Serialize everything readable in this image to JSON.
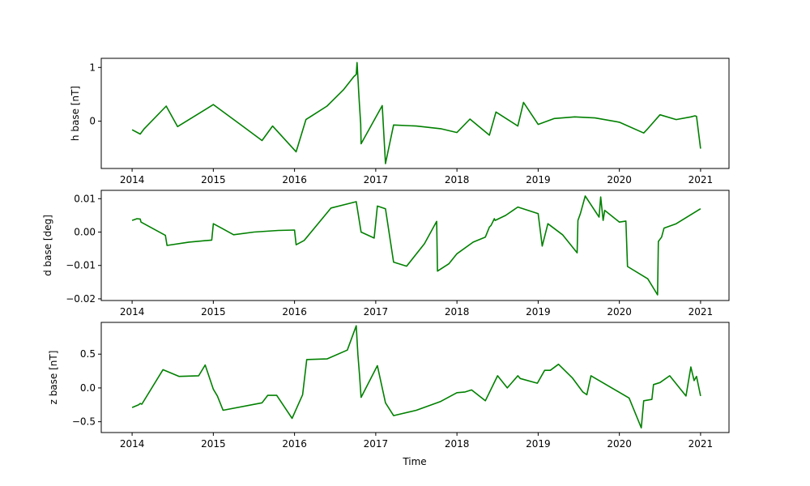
{
  "chart_data": [
    {
      "type": "line",
      "ylabel": "h base [nT]",
      "xlabel": "",
      "xlim": [
        2013.62,
        2021.35
      ],
      "ylim": [
        -0.88,
        1.17
      ],
      "xticks": [
        2014,
        2015,
        2016,
        2017,
        2018,
        2019,
        2020,
        2021
      ],
      "xtick_labels": [
        "2014",
        "2015",
        "2016",
        "2017",
        "2018",
        "2019",
        "2020",
        "2021"
      ],
      "yticks": [
        0,
        1
      ],
      "ytick_labels": [
        "0",
        "1"
      ],
      "grid": false,
      "series": [
        {
          "color": "#008000",
          "x": [
            2014.0,
            2014.1,
            2014.15,
            2014.42,
            2014.56,
            2015.0,
            2015.35,
            2015.6,
            2015.73,
            2016.02,
            2016.14,
            2016.4,
            2016.6,
            2016.73,
            2016.76,
            2016.77,
            2016.785,
            2016.79,
            2016.8,
            2016.815,
            2016.82,
            2017.08,
            2017.12,
            2017.22,
            2017.5,
            2017.8,
            2018.0,
            2018.16,
            2018.4,
            2018.48,
            2018.75,
            2018.82,
            2019.0,
            2019.2,
            2019.45,
            2019.7,
            2020.0,
            2020.3,
            2020.35,
            2020.5,
            2020.7,
            2020.88,
            2020.93,
            2020.95,
            2021.0
          ],
          "y": [
            -0.16,
            -0.24,
            -0.14,
            0.28,
            -0.1,
            0.31,
            -0.08,
            -0.36,
            -0.09,
            -0.57,
            0.03,
            0.28,
            0.58,
            0.83,
            0.87,
            1.09,
            0.7,
            0.55,
            0.3,
            -0.05,
            -0.42,
            0.29,
            -0.79,
            -0.07,
            -0.09,
            -0.14,
            -0.21,
            0.04,
            -0.26,
            0.17,
            -0.09,
            0.35,
            -0.06,
            0.05,
            0.08,
            0.06,
            -0.02,
            -0.22,
            -0.14,
            0.12,
            0.03,
            0.08,
            0.1,
            0.09,
            -0.51
          ]
        }
      ]
    },
    {
      "type": "line",
      "ylabel": "d base [deg]",
      "xlabel": "",
      "xlim": [
        2013.62,
        2021.35
      ],
      "ylim": [
        -0.0205,
        0.0125
      ],
      "xticks": [
        2014,
        2015,
        2016,
        2017,
        2018,
        2019,
        2020,
        2021
      ],
      "xtick_labels": [
        "2014",
        "2015",
        "2016",
        "2017",
        "2018",
        "2019",
        "2020",
        "2021"
      ],
      "yticks": [
        -0.02,
        -0.01,
        0.0,
        0.01
      ],
      "ytick_labels": [
        "−0.02",
        "−0.01",
        "0.00",
        "0.01"
      ],
      "grid": false,
      "series": [
        {
          "color": "#008000",
          "x": [
            2014.0,
            2014.06,
            2014.1,
            2014.11,
            2014.41,
            2014.43,
            2014.7,
            2014.98,
            2015.0,
            2015.1,
            2015.25,
            2015.5,
            2015.8,
            2016.0,
            2016.02,
            2016.12,
            2016.45,
            2016.76,
            2016.82,
            2016.98,
            2017.02,
            2017.12,
            2017.22,
            2017.38,
            2017.6,
            2017.75,
            2017.76,
            2017.9,
            2018.0,
            2018.2,
            2018.35,
            2018.4,
            2018.42,
            2018.46,
            2018.47,
            2018.6,
            2018.75,
            2019.0,
            2019.05,
            2019.12,
            2019.3,
            2019.48,
            2019.49,
            2019.52,
            2019.58,
            2019.75,
            2019.77,
            2019.8,
            2019.82,
            2020.0,
            2020.08,
            2020.1,
            2020.35,
            2020.47,
            2020.48,
            2020.52,
            2020.55,
            2020.7,
            2021.0
          ],
          "y": [
            0.0035,
            0.004,
            0.0039,
            0.003,
            -0.001,
            -0.004,
            -0.003,
            -0.0024,
            0.0025,
            0.0012,
            -0.0008,
            0.0,
            0.0005,
            0.0006,
            -0.0038,
            -0.0025,
            0.0072,
            0.0091,
            0.0,
            -0.0018,
            0.0078,
            0.007,
            -0.009,
            -0.0102,
            -0.0035,
            0.0032,
            -0.0117,
            -0.0095,
            -0.0065,
            -0.003,
            -0.0015,
            0.0015,
            0.002,
            0.004,
            0.0035,
            0.005,
            0.0075,
            0.0055,
            -0.0042,
            0.0025,
            -0.0008,
            -0.0062,
            0.0035,
            0.0055,
            0.0108,
            0.0045,
            0.0105,
            0.0035,
            0.0065,
            0.003,
            0.0033,
            -0.0103,
            -0.014,
            -0.0188,
            -0.0028,
            -0.0015,
            0.0012,
            0.0025,
            0.007
          ]
        }
      ]
    },
    {
      "type": "line",
      "ylabel": "z base [nT]",
      "xlabel": "Time",
      "xlim": [
        2013.62,
        2021.35
      ],
      "ylim": [
        -0.66,
        0.97
      ],
      "xticks": [
        2014,
        2015,
        2016,
        2017,
        2018,
        2019,
        2020,
        2021
      ],
      "xtick_labels": [
        "2014",
        "2015",
        "2016",
        "2017",
        "2018",
        "2019",
        "2020",
        "2021"
      ],
      "yticks": [
        -0.5,
        0.0,
        0.5
      ],
      "ytick_labels": [
        "−0.5",
        "0.0",
        "0.5"
      ],
      "grid": false,
      "series": [
        {
          "color": "#008000",
          "x": [
            2014.0,
            2014.08,
            2014.1,
            2014.12,
            2014.38,
            2014.58,
            2014.82,
            2014.9,
            2015.0,
            2015.05,
            2015.12,
            2015.6,
            2015.67,
            2015.78,
            2015.97,
            2016.1,
            2016.15,
            2016.4,
            2016.65,
            2016.76,
            2016.78,
            2016.8,
            2016.82,
            2017.02,
            2017.12,
            2017.22,
            2017.5,
            2017.8,
            2018.0,
            2018.1,
            2018.18,
            2018.35,
            2018.5,
            2018.62,
            2018.75,
            2018.78,
            2018.99,
            2019.08,
            2019.15,
            2019.25,
            2019.42,
            2019.55,
            2019.6,
            2019.65,
            2020.12,
            2020.27,
            2020.3,
            2020.4,
            2020.42,
            2020.5,
            2020.62,
            2020.82,
            2020.88,
            2020.92,
            2020.95,
            2021.0
          ],
          "y": [
            -0.29,
            -0.25,
            -0.23,
            -0.24,
            0.27,
            0.17,
            0.18,
            0.34,
            -0.02,
            -0.12,
            -0.33,
            -0.22,
            -0.11,
            -0.11,
            -0.45,
            -0.1,
            0.42,
            0.43,
            0.56,
            0.92,
            0.5,
            0.2,
            -0.14,
            0.33,
            -0.22,
            -0.41,
            -0.33,
            -0.2,
            -0.07,
            -0.06,
            -0.03,
            -0.19,
            0.18,
            0.0,
            0.18,
            0.14,
            0.07,
            0.26,
            0.26,
            0.35,
            0.15,
            -0.06,
            -0.1,
            0.18,
            -0.15,
            -0.59,
            -0.19,
            -0.17,
            0.05,
            0.08,
            0.18,
            -0.12,
            0.31,
            0.11,
            0.17,
            -0.12
          ]
        }
      ]
    }
  ]
}
